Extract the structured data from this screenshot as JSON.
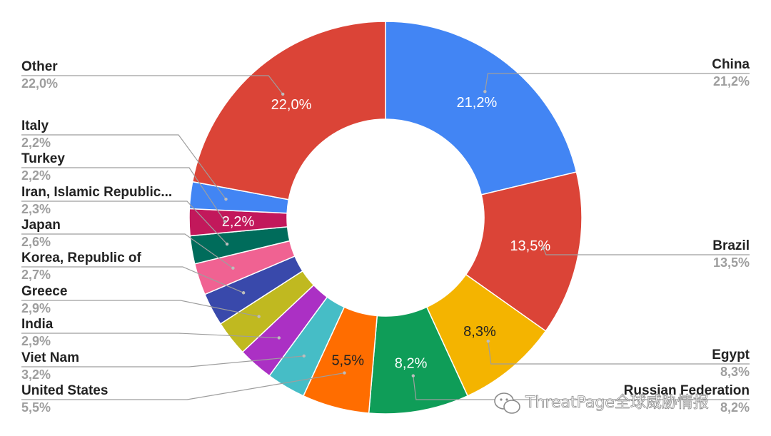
{
  "chart_data": {
    "type": "pie",
    "subtype": "donut",
    "slices": [
      {
        "name": "China",
        "value": 21.2,
        "label": "21,2%",
        "color": "#4285f4",
        "inside_label": "21,2%",
        "inside_text_color": "#ffffff"
      },
      {
        "name": "Brazil",
        "value": 13.5,
        "label": "13,5%",
        "color": "#db4437",
        "inside_label": "13,5%",
        "inside_text_color": "#ffffff"
      },
      {
        "name": "Egypt",
        "value": 8.3,
        "label": "8,3%",
        "color": "#f4b400",
        "inside_label": "8,3%",
        "inside_text_color": "#222222"
      },
      {
        "name": "Russian Federation",
        "value": 8.2,
        "label": "8,2%",
        "color": "#0f9d58",
        "inside_label": "8,2%",
        "inside_text_color": "#ffffff"
      },
      {
        "name": "United States",
        "value": 5.5,
        "label": "5,5%",
        "color": "#ff6d00",
        "inside_label": "5,5%",
        "inside_text_color": "#222222"
      },
      {
        "name": "Viet Nam",
        "value": 3.2,
        "label": "3,2%",
        "color": "#46bdc6",
        "inside_label": "",
        "inside_text_color": "#ffffff"
      },
      {
        "name": "India",
        "value": 2.9,
        "label": "2,9%",
        "color": "#ab30c4",
        "inside_label": "",
        "inside_text_color": "#ffffff"
      },
      {
        "name": "Greece",
        "value": 2.9,
        "label": "2,9%",
        "color": "#c0b920",
        "inside_label": "",
        "inside_text_color": "#ffffff"
      },
      {
        "name": "Korea, Republic of",
        "value": 2.7,
        "label": "2,7%",
        "color": "#3949ab",
        "inside_label": "",
        "inside_text_color": "#ffffff"
      },
      {
        "name": "Japan",
        "value": 2.6,
        "label": "2,6%",
        "color": "#f06292",
        "inside_label": "",
        "inside_text_color": "#ffffff"
      },
      {
        "name": "Iran, Islamic Republic...",
        "value": 2.3,
        "label": "2,3%",
        "color": "#006c5b",
        "inside_label": "",
        "inside_text_color": "#ffffff"
      },
      {
        "name": "Turkey",
        "value": 2.2,
        "label": "2,2%",
        "color": "#c2185b",
        "inside_label": "2,2%",
        "inside_text_color": "#ffffff"
      },
      {
        "name": "Italy",
        "value": 2.2,
        "label": "2,2%",
        "color": "#4285f4",
        "inside_label": "",
        "inside_text_color": "#ffffff"
      },
      {
        "name": "Other",
        "value": 22.0,
        "label": "22,0%",
        "color": "#db4437",
        "inside_label": "22,0%",
        "inside_text_color": "#ffffff"
      }
    ],
    "start_angle_deg": 0,
    "direction": "clockwise",
    "legend": "external-callout-labels"
  },
  "watermark": {
    "text": "ThreatPage全球威胁情报",
    "icon": "wechat-icon"
  }
}
